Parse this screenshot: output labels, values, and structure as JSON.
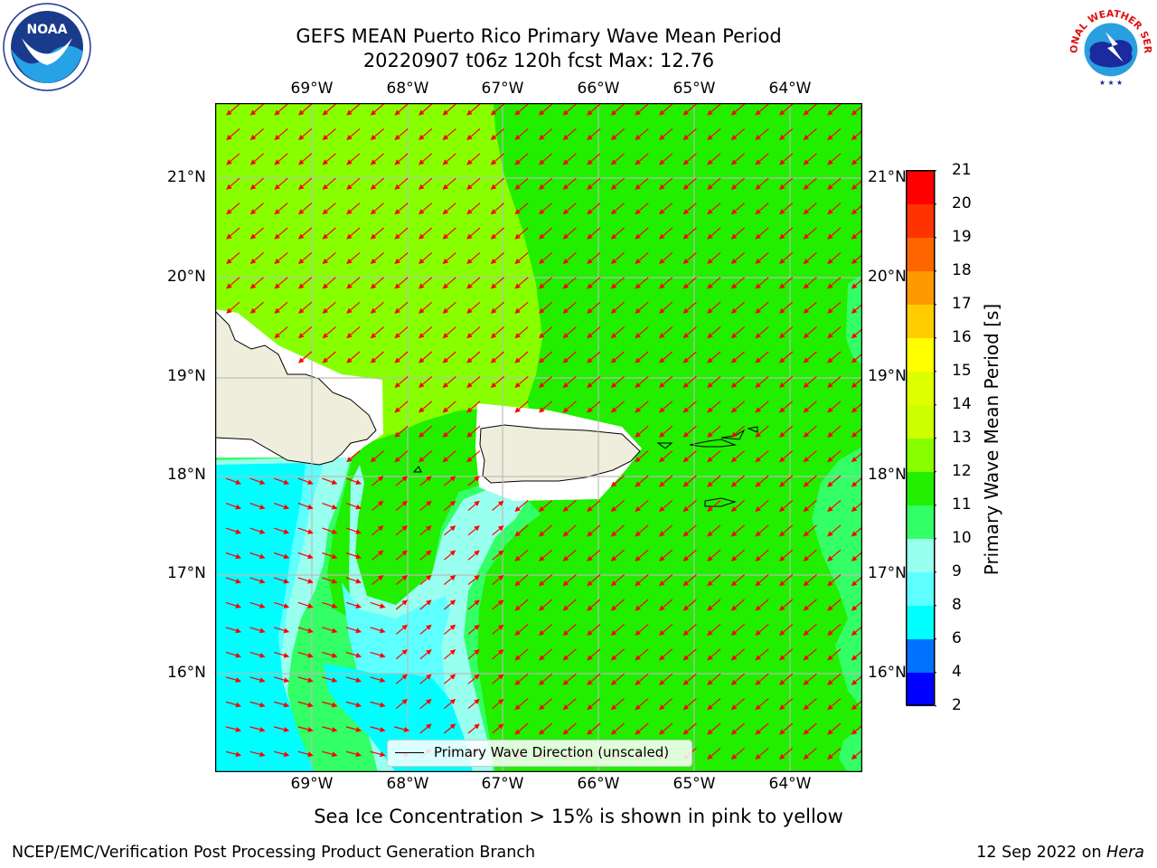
{
  "title_line1": "GEFS MEAN Puerto Rico Primary Wave Mean Period",
  "title_line2": "20220907 t06z 120h fcst   Max: 12.76",
  "lon_labels": [
    "69°W",
    "68°W",
    "67°W",
    "66°W",
    "65°W",
    "64°W"
  ],
  "lat_labels": [
    "21°N",
    "20°N",
    "19°N",
    "18°N",
    "17°N",
    "16°N"
  ],
  "colorbar": {
    "label": "Primary Wave Mean Period [s]",
    "ticks": [
      "2",
      "4",
      "6",
      "8",
      "9",
      "10",
      "11",
      "12",
      "13",
      "14",
      "15",
      "16",
      "17",
      "18",
      "19",
      "20",
      "21"
    ],
    "colors": [
      "#0000ff",
      "#0070ff",
      "#00ffff",
      "#5effff",
      "#99ffee",
      "#33ff66",
      "#22ee00",
      "#88ff00",
      "#ccff00",
      "#ddff00",
      "#ffff00",
      "#ffcc00",
      "#ff9900",
      "#ff6600",
      "#ff3300",
      "#ff0000"
    ]
  },
  "legend": {
    "label": "Primary Wave Direction (unscaled)"
  },
  "subtitle": "Sea Ice Concentration > 15% is shown in pink to yellow",
  "footer_left": "NCEP/EMC/Verification Post Processing Product Generation Branch",
  "footer_right_prefix": "12 Sep 2022 on",
  "footer_right_host": "Hera",
  "map_colors": {
    "land": "#efeedd",
    "period_11_12": "#22ee00",
    "period_12_13": "#88ff00",
    "period_10_11": "#33ff66",
    "period_9_10": "#99ffee",
    "period_8_9": "#5effff",
    "period_6_8": "#00ffff",
    "arrow": "#ff0000",
    "grid": "#bbbbbb"
  },
  "logos": {
    "noaa": "NOAA",
    "nws": "NATIONAL WEATHER SERVICE"
  }
}
